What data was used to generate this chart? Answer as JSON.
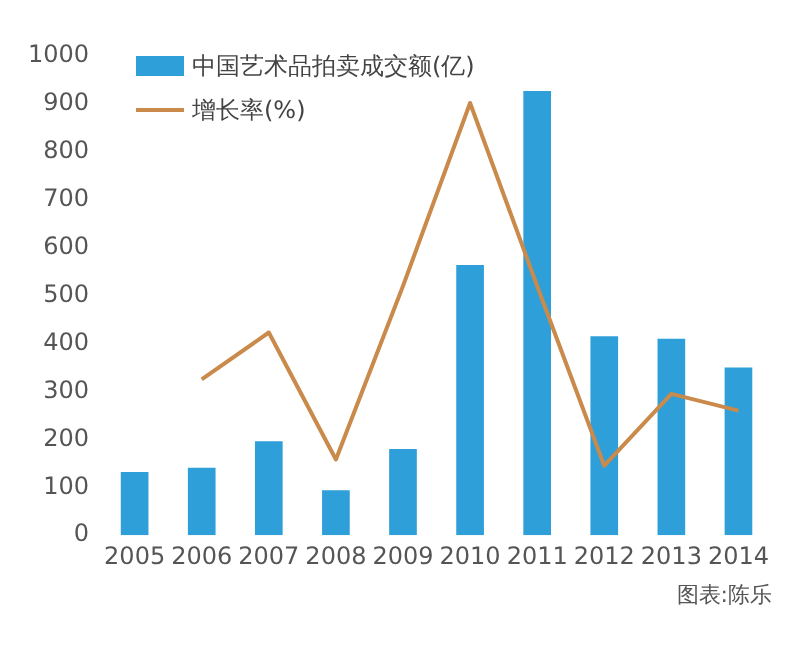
{
  "chart_data": {
    "type": "bar",
    "categories": [
      "2005",
      "2006",
      "2007",
      "2008",
      "2009",
      "2010",
      "2011",
      "2012",
      "2013",
      "2014"
    ],
    "series": [
      {
        "name": "中国艺术品拍卖成交额(亿)",
        "color": "#2e9fd9",
        "values": [
          132,
          141,
          196,
          94,
          180,
          564,
          927,
          415,
          410,
          350
        ]
      },
      {
        "name": "增长率(%)",
        "type": "line",
        "color": "#c98a4b",
        "values": [
          null,
          325,
          423,
          158,
          520,
          902,
          520,
          145,
          295,
          260
        ]
      }
    ],
    "ylim": [
      0,
      1000
    ],
    "yticks": [
      0,
      100,
      200,
      300,
      400,
      500,
      600,
      700,
      800,
      900,
      1000
    ],
    "grid": false,
    "legend": "top left",
    "marker": "none",
    "annotations": [
      "图表:陈乐"
    ]
  }
}
